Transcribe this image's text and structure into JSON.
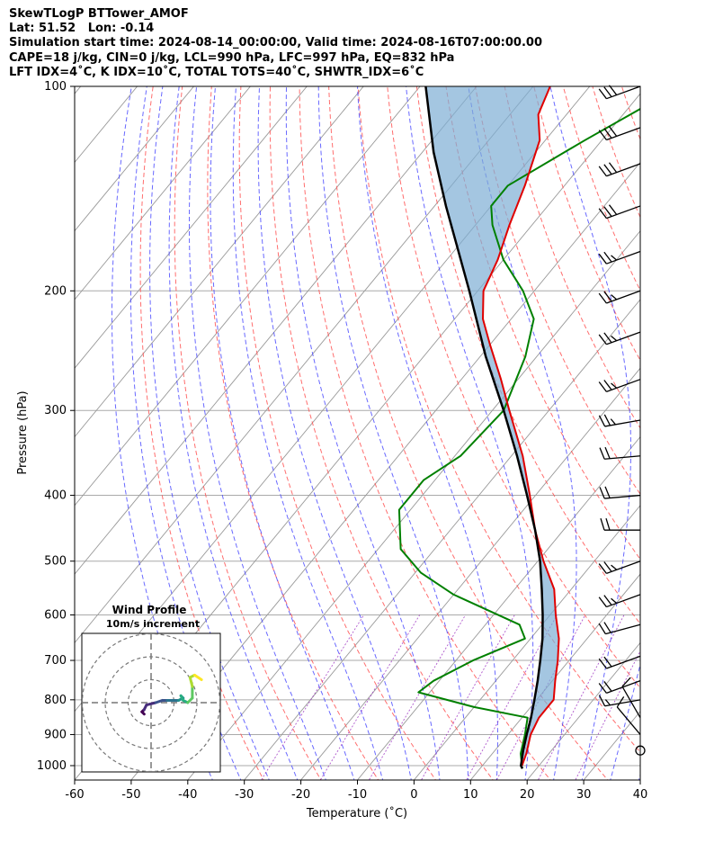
{
  "header": {
    "line1": "SkewTLogP BTTower_AMOF",
    "line2": "Lat: 51.52   Lon: -0.14",
    "line3": "Simulation start time: 2024-08-14_00:00:00, Valid time: 2024-08-16T07:00:00.00",
    "line4": "CAPE=18 j/kg, CIN=0 j/kg, LCL=990 hPa, LFC=997 hPa, EQ=832 hPa",
    "line5": "LFT IDX=4˚C, K IDX=10˚C, TOTAL TOTS=40˚C, SHWTR_IDX=6˚C"
  },
  "chart_data": {
    "type": "line",
    "subtype": "skew-t log-p",
    "xlabel": "Temperature (˚C)",
    "ylabel": "Pressure (hPa)",
    "xlim": [
      -60,
      40
    ],
    "ylim": [
      1050,
      100
    ],
    "y_scale": "log",
    "x_ticks": [
      -60,
      -50,
      -40,
      -30,
      -20,
      -10,
      0,
      10,
      20,
      30,
      40
    ],
    "y_ticks": [
      1000,
      900,
      800,
      700,
      600,
      500,
      400,
      300,
      200,
      100
    ],
    "grid": true,
    "colors": {
      "temperature": "#e00000",
      "dewpoint": "#008000",
      "parcel": "#000000",
      "cape_fill": "#7eaed4",
      "dry_adiabats": "#ff5555",
      "moist_adiabats": "#4444ff",
      "mixing_ratio": "#9b30c0",
      "isotherms": "#999999"
    },
    "series": [
      {
        "name": "temperature",
        "p": [
          1000,
          960,
          900,
          850,
          820,
          800,
          750,
          700,
          650,
          600,
          550,
          500,
          450,
          400,
          350,
          300,
          270,
          240,
          220,
          200,
          180,
          160,
          140,
          120,
          110,
          100
        ],
        "t": [
          17,
          16,
          14,
          13,
          13,
          13,
          10.5,
          8,
          5,
          1,
          -3,
          -9,
          -15,
          -21,
          -28,
          -37,
          -43,
          -50,
          -55,
          -59,
          -61,
          -64,
          -67,
          -71,
          -75,
          -77
        ]
      },
      {
        "name": "dewpoint",
        "p": [
          1000,
          960,
          900,
          850,
          820,
          780,
          750,
          700,
          650,
          620,
          560,
          520,
          480,
          420,
          380,
          350,
          300,
          250,
          220,
          200,
          180,
          160,
          150,
          140,
          120,
          100
        ],
        "t": [
          17,
          15,
          13,
          11,
          0,
          -12,
          -11,
          -7,
          -1,
          -4,
          -20,
          -29,
          -36,
          -42,
          -42,
          -39,
          -38,
          -42,
          -46,
          -52,
          -60,
          -67,
          -70,
          -70,
          -63,
          -54
        ]
      },
      {
        "name": "parcel",
        "p": [
          1010,
          1000,
          950,
          900,
          850,
          800,
          750,
          700,
          650,
          600,
          550,
          500,
          450,
          400,
          350,
          300,
          250,
          200,
          150,
          125,
          100
        ],
        "t": [
          17.5,
          16.8,
          15.0,
          13.3,
          11.6,
          9.6,
          7.4,
          4.9,
          2.1,
          -1.3,
          -5.2,
          -9.6,
          -15,
          -21.5,
          -29,
          -38,
          -49,
          -61.5,
          -78,
          -88,
          -99
        ]
      }
    ],
    "cape_fill": "between temperature and parcel",
    "wind_barbs": {
      "p": [
        100,
        115,
        130,
        150,
        175,
        200,
        230,
        270,
        310,
        350,
        400,
        450,
        500,
        560,
        620,
        690,
        750,
        800,
        850,
        900,
        950
      ],
      "dir": [
        250,
        250,
        250,
        250,
        250,
        250,
        250,
        250,
        260,
        265,
        265,
        270,
        250,
        250,
        255,
        250,
        250,
        260,
        330,
        320,
        0
      ],
      "speed_kt": [
        30,
        30,
        30,
        30,
        25,
        25,
        25,
        25,
        25,
        20,
        20,
        20,
        25,
        25,
        20,
        20,
        20,
        15,
        10,
        10,
        0
      ]
    },
    "hodograph": {
      "title": "Wind Profile",
      "subtitle": "10m/s increment",
      "rings": [
        10,
        20,
        30
      ],
      "u": [
        -3,
        -4,
        -3,
        -2,
        2,
        5,
        7,
        9,
        12,
        14,
        13,
        14,
        16,
        18,
        18,
        17,
        19,
        22
      ],
      "v": [
        -5,
        -4,
        -3,
        -1,
        0,
        1,
        1,
        1,
        1,
        2,
        3,
        1,
        0,
        2,
        7,
        11,
        12,
        10
      ]
    }
  }
}
